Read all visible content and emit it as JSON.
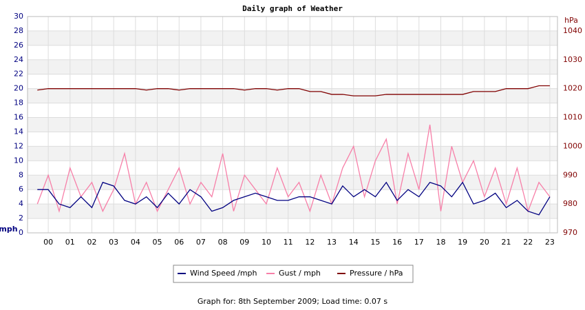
{
  "chart_data": {
    "type": "line",
    "title": "Daily graph of Weather",
    "ylabel": "mph",
    "y2label": "hPa",
    "x": [
      -0.5,
      0,
      0.5,
      1,
      1.5,
      2,
      2.5,
      3,
      3.5,
      4,
      4.5,
      5,
      5.5,
      6,
      6.5,
      7,
      7.5,
      8,
      8.5,
      9,
      9.5,
      10,
      10.5,
      11,
      11.5,
      12,
      12.5,
      13,
      13.5,
      14,
      14.5,
      15,
      15.5,
      16,
      16.5,
      17,
      17.5,
      18,
      18.5,
      19,
      19.5,
      20,
      20.5,
      21,
      21.5,
      22,
      22.5,
      23
    ],
    "xlim": [
      -0.95,
      23.35
    ],
    "xticks": [
      {
        "value": 0,
        "label": "00"
      },
      {
        "value": 1,
        "label": "01"
      },
      {
        "value": 2,
        "label": "02"
      },
      {
        "value": 3,
        "label": "03"
      },
      {
        "value": 4,
        "label": "04"
      },
      {
        "value": 5,
        "label": "05"
      },
      {
        "value": 6,
        "label": "06"
      },
      {
        "value": 7,
        "label": "07"
      },
      {
        "value": 8,
        "label": "08"
      },
      {
        "value": 9,
        "label": "09"
      },
      10,
      11,
      12,
      13,
      14,
      15,
      16,
      17,
      18,
      19,
      20,
      21,
      22,
      23
    ],
    "ylim": [
      0,
      30
    ],
    "yticks": [
      0,
      2,
      4,
      6,
      8,
      10,
      12,
      14,
      16,
      18,
      20,
      22,
      24,
      26,
      28,
      30
    ],
    "y2lim": [
      970,
      1045
    ],
    "y2ticks": [
      970,
      980,
      990,
      1000,
      1010,
      1020,
      1030,
      1040
    ],
    "grid": true,
    "series": [
      {
        "name": "Wind Speed /mph",
        "color": "#000080",
        "values": [
          6,
          6,
          4,
          3.5,
          5,
          3.5,
          7,
          6.5,
          4.5,
          4,
          5,
          3.5,
          5.5,
          4,
          6,
          5,
          3,
          3.5,
          4.5,
          5,
          5.5,
          5,
          4.5,
          4.5,
          5,
          5,
          4.5,
          4,
          6.5,
          5,
          6,
          5,
          7,
          4.5,
          6,
          5,
          7,
          6.5,
          5,
          7,
          4,
          4.5,
          5.5,
          3.5,
          4.5,
          3,
          2.5,
          5
        ]
      },
      {
        "name": "Gust / mph",
        "color": "#f77fa8",
        "values": [
          4,
          8,
          3,
          9,
          5,
          7,
          3,
          6,
          11,
          4,
          7,
          3,
          6,
          9,
          4,
          7,
          5,
          11,
          3,
          8,
          6,
          4,
          9,
          5,
          7,
          3,
          8,
          4,
          9,
          12,
          5,
          10,
          13,
          4,
          11,
          6,
          15,
          3,
          12,
          7,
          10,
          5,
          9,
          4,
          9,
          3,
          7,
          5
        ]
      },
      {
        "name": "Pressure / hPa",
        "color": "#800000",
        "axis": "y2",
        "values": [
          1019.5,
          1020,
          1020,
          1020,
          1020,
          1020,
          1020,
          1020,
          1020,
          1020,
          1019.5,
          1020,
          1020,
          1019.5,
          1020,
          1020,
          1020,
          1020,
          1020,
          1019.5,
          1020,
          1020,
          1019.5,
          1020,
          1020,
          1019,
          1019,
          1018,
          1018,
          1017.5,
          1017.5,
          1017.5,
          1018,
          1018,
          1018,
          1018,
          1018,
          1018,
          1018,
          1018,
          1019,
          1019,
          1019,
          1020,
          1020,
          1020,
          1021,
          1021
        ]
      }
    ]
  },
  "footer": "Graph for: 8th September 2009; Load time: 0.07 s"
}
